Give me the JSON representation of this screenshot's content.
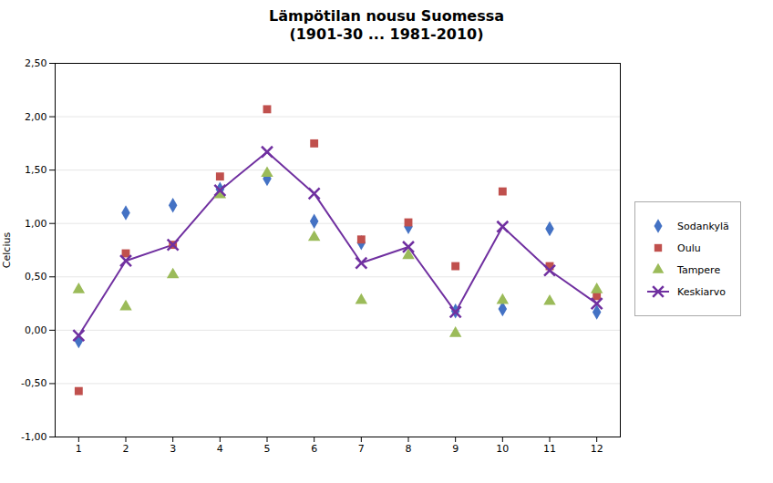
{
  "chart_data": {
    "type": "scatter",
    "title": "Lämpötilan nousu Suomessa\n(1901-30 ... 1981-2010)",
    "ylabel": "Celcius",
    "x": [
      1,
      2,
      3,
      4,
      5,
      6,
      7,
      8,
      9,
      10,
      11,
      12
    ],
    "series": [
      {
        "name": "Sodankylä",
        "type": "scatter",
        "marker": "diamond",
        "color": "#4472c4",
        "values": [
          -0.1,
          1.1,
          1.17,
          1.32,
          1.42,
          1.02,
          0.82,
          0.97,
          0.18,
          0.2,
          0.95,
          0.17
        ]
      },
      {
        "name": "Oulu",
        "type": "scatter",
        "marker": "square",
        "color": "#c0504d",
        "values": [
          -0.57,
          0.72,
          0.8,
          1.44,
          2.07,
          1.75,
          0.85,
          1.01,
          0.6,
          1.3,
          0.6,
          0.32
        ]
      },
      {
        "name": "Tampere",
        "type": "scatter",
        "marker": "triangle",
        "color": "#9bbb59",
        "values": [
          0.38,
          0.22,
          0.52,
          1.27,
          1.47,
          0.87,
          0.28,
          0.7,
          -0.03,
          0.28,
          0.27,
          0.38
        ]
      },
      {
        "name": "Keskiarvo",
        "type": "line",
        "marker": "x",
        "color": "#7030a0",
        "values": [
          -0.05,
          0.65,
          0.8,
          1.31,
          1.67,
          1.28,
          0.63,
          0.78,
          0.17,
          0.97,
          0.56,
          0.25
        ]
      }
    ],
    "xlim": [
      0.5,
      12.5
    ],
    "xticks": [
      1,
      2,
      3,
      4,
      5,
      6,
      7,
      8,
      9,
      10,
      11,
      12
    ],
    "ylim": [
      -1.0,
      2.5
    ],
    "yticks": [
      {
        "value": -1.0,
        "label": "-1,00"
      },
      {
        "value": -0.5,
        "label": "-0,50"
      },
      {
        "value": 0.0,
        "label": "0,00"
      },
      {
        "value": 0.5,
        "label": "0,50"
      },
      {
        "value": 1.0,
        "label": "1,00"
      },
      {
        "value": 1.5,
        "label": "1,50"
      },
      {
        "value": 2.0,
        "label": "2,00"
      },
      {
        "value": 2.5,
        "label": "2,50"
      }
    ],
    "grid": true,
    "legend": "right"
  }
}
